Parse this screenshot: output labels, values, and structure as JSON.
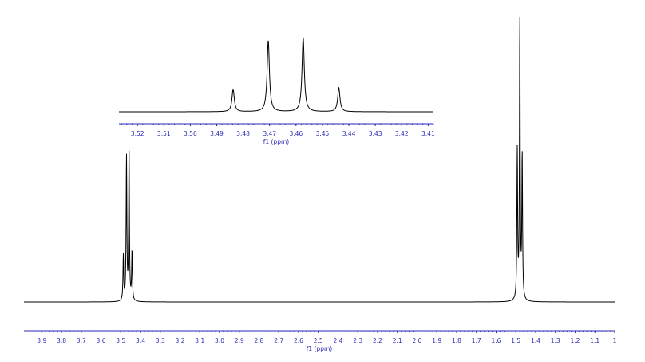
{
  "chart_data": [
    {
      "type": "line",
      "panel": "full spectrum",
      "xlabel": "f1 (ppm)",
      "xlim": [
        3.99,
        1.0
      ],
      "x_reversed": true,
      "ylim": [
        0,
        1
      ],
      "ylim_note": "intensity normalized; peak heights relative to tallest line",
      "grid": false,
      "ticks": [
        "3.9",
        "3.8",
        "3.7",
        "3.6",
        "3.5",
        "3.4",
        "3.3",
        "3.2",
        "3.1",
        "3.0",
        "2.9",
        "2.8",
        "2.7",
        "2.6",
        "2.5",
        "2.4",
        "2.3",
        "2.2",
        "2.1",
        "2.0",
        "1.9",
        "1.8",
        "1.7",
        "1.6",
        "1.5",
        "1.4",
        "1.3",
        "1.2",
        "1.1",
        "1"
      ],
      "peaks": [
        {
          "x": 3.487,
          "y": 0.162
        },
        {
          "x": 3.471,
          "y": 0.515
        },
        {
          "x": 3.458,
          "y": 0.535
        },
        {
          "x": 3.443,
          "y": 0.176
        },
        {
          "x": 1.493,
          "y": 0.529
        },
        {
          "x": 1.48,
          "y": 1.0
        },
        {
          "x": 1.468,
          "y": 0.514
        }
      ]
    },
    {
      "type": "line",
      "panel": "inset expansion",
      "xlabel": "f1 (ppm)",
      "xlim": [
        3.527,
        3.408
      ],
      "x_reversed": true,
      "ylim": [
        0,
        1
      ],
      "grid": false,
      "ticks": [
        "3.52",
        "3.51",
        "3.50",
        "3.49",
        "3.48",
        "3.47",
        "3.46",
        "3.45",
        "3.44",
        "3.43",
        "3.42",
        "3.41"
      ],
      "peaks": [
        {
          "x": 3.4838,
          "y": 0.303
        },
        {
          "x": 3.4705,
          "y": 0.958
        },
        {
          "x": 3.4573,
          "y": 1.0
        },
        {
          "x": 3.4438,
          "y": 0.323
        }
      ]
    }
  ]
}
